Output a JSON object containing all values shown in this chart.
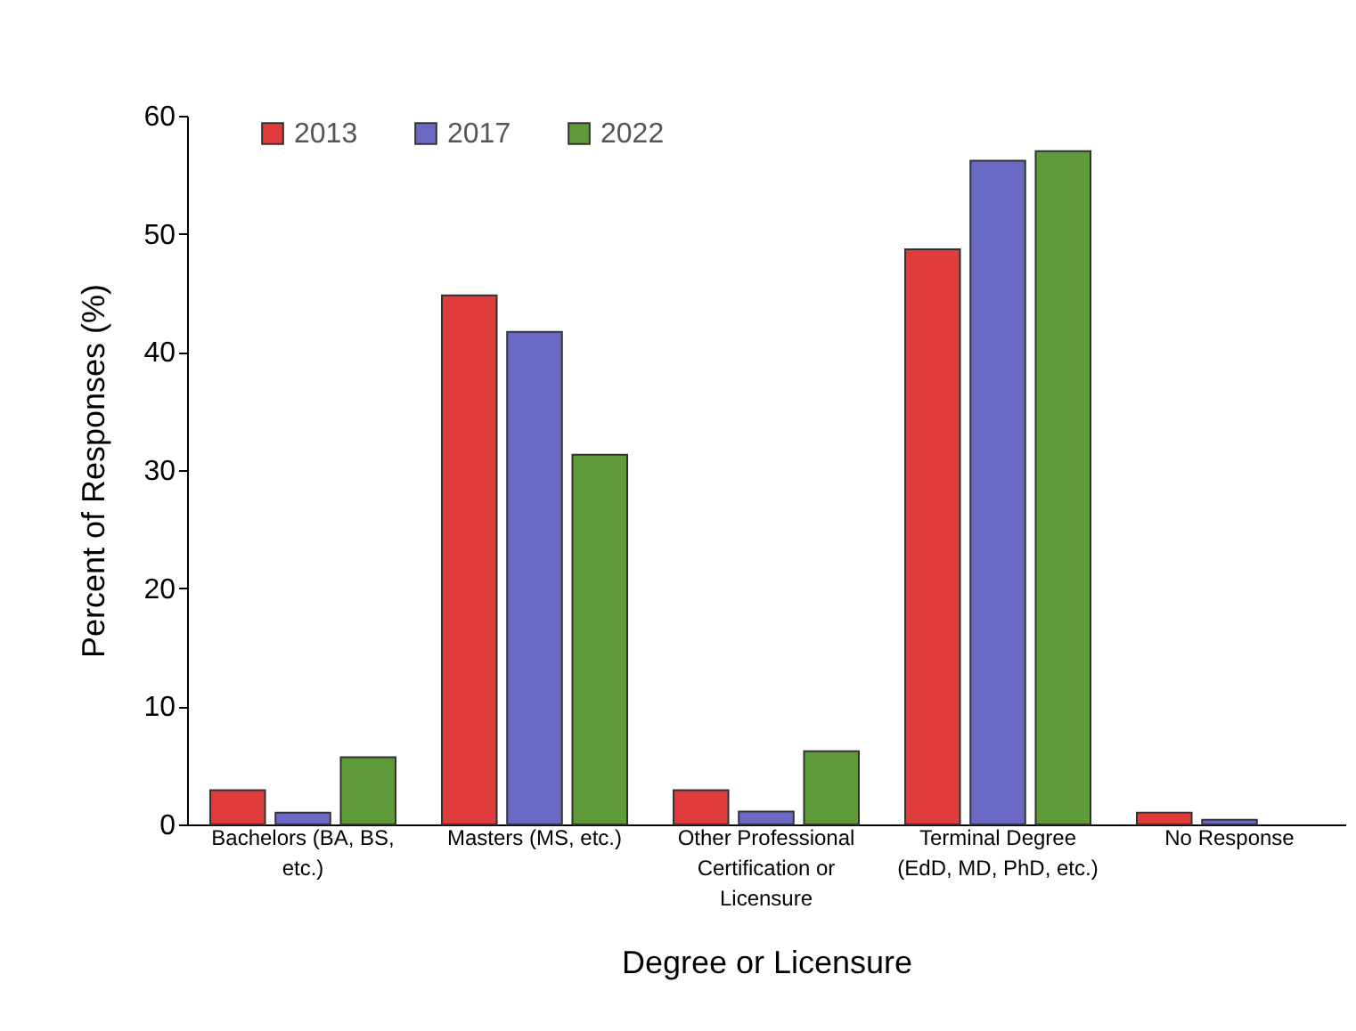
{
  "chart_data": {
    "type": "bar",
    "xlabel": "Degree or Licensure",
    "ylabel": "Percent of Responses (%)",
    "categories": [
      "Bachelors (BA, BS, etc.)",
      "Masters (MS, etc.)",
      "Other Professional Certification or Licensure",
      "Terminal Degree (EdD, MD, PhD, etc.)",
      "No Response"
    ],
    "series": [
      {
        "name": "2013",
        "color": "#e03c3c",
        "values": [
          2.9,
          44.8,
          2.9,
          48.7,
          1.0
        ]
      },
      {
        "name": "2017",
        "color": "#6a6ac4",
        "values": [
          1.0,
          41.7,
          1.1,
          56.2,
          0.4
        ]
      },
      {
        "name": "2022",
        "color": "#5f9a3a",
        "values": [
          5.7,
          31.3,
          6.2,
          57.0,
          null
        ]
      }
    ],
    "ylim": [
      0,
      60
    ],
    "yticks": [
      0,
      10,
      20,
      30,
      40,
      50,
      60
    ],
    "grid": false,
    "legend": "top left"
  }
}
